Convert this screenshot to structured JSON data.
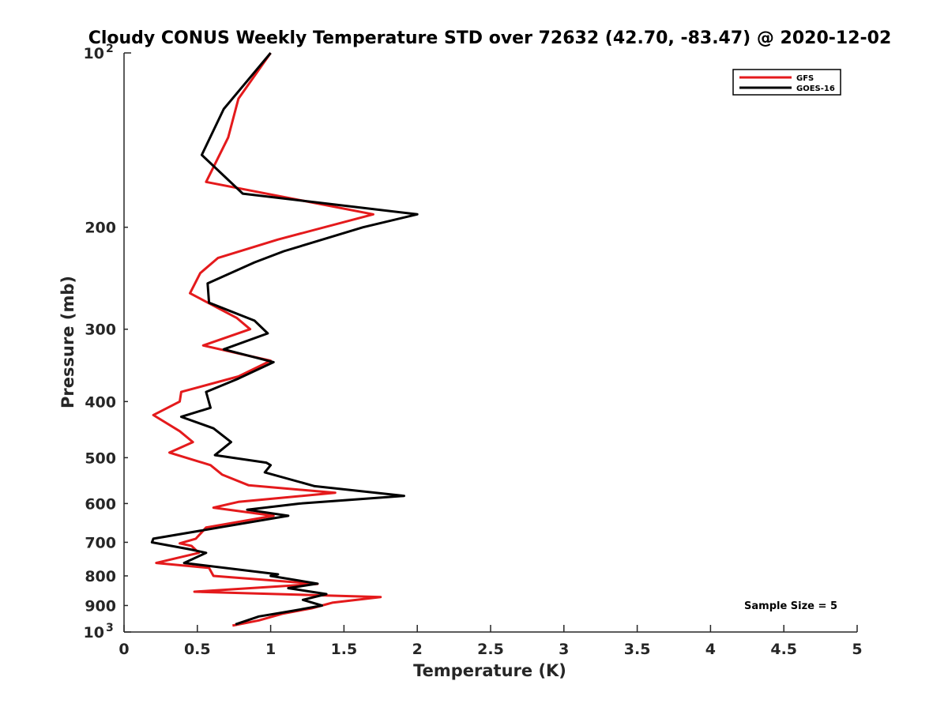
{
  "chart_data": {
    "type": "line",
    "title": "Cloudy CONUS Weekly Temperature STD over 72632 (42.70, -83.47) @ 2020-12-02",
    "xlabel": "Temperature (K)",
    "ylabel": "Pressure (mb)",
    "xlim": [
      0,
      5
    ],
    "ylim": [
      100,
      1000
    ],
    "y_scale": "log",
    "y_reversed": true,
    "x_ticks": [
      "0",
      "0.5",
      "1",
      "1.5",
      "2",
      "2.5",
      "3",
      "3.5",
      "4",
      "4.5",
      "5"
    ],
    "x_tick_values": [
      0,
      0.5,
      1,
      1.5,
      2,
      2.5,
      3,
      3.5,
      4,
      4.5,
      5
    ],
    "y_ticks": [
      {
        "value": 100,
        "base": "10",
        "exp": "2"
      },
      {
        "value": 200,
        "label": "200"
      },
      {
        "value": 300,
        "label": "300"
      },
      {
        "value": 400,
        "label": "400"
      },
      {
        "value": 500,
        "label": "500"
      },
      {
        "value": 600,
        "label": "600"
      },
      {
        "value": 700,
        "label": "700"
      },
      {
        "value": 800,
        "label": "800"
      },
      {
        "value": 900,
        "label": "900"
      },
      {
        "value": 1000,
        "base": "10",
        "exp": "3"
      }
    ],
    "grid": false,
    "legend_position": "top-right",
    "annotation": "Sample Size = 5",
    "series": [
      {
        "name": "GFS",
        "color": "#e41a1c",
        "points": [
          [
            1.0,
            100
          ],
          [
            0.78,
            120
          ],
          [
            0.71,
            140
          ],
          [
            0.56,
            167
          ],
          [
            1.7,
            190
          ],
          [
            1.05,
            210
          ],
          [
            0.64,
            226
          ],
          [
            0.52,
            240
          ],
          [
            0.45,
            260
          ],
          [
            0.77,
            287
          ],
          [
            0.86,
            300
          ],
          [
            0.54,
            320
          ],
          [
            1.0,
            340
          ],
          [
            0.78,
            362
          ],
          [
            0.39,
            385
          ],
          [
            0.38,
            400
          ],
          [
            0.2,
            422
          ],
          [
            0.38,
            450
          ],
          [
            0.47,
            470
          ],
          [
            0.31,
            490
          ],
          [
            0.59,
            515
          ],
          [
            0.67,
            535
          ],
          [
            0.85,
            558
          ],
          [
            1.44,
            575
          ],
          [
            0.78,
            596
          ],
          [
            0.61,
            610
          ],
          [
            1.02,
            630
          ],
          [
            0.56,
            660
          ],
          [
            0.49,
            690
          ],
          [
            0.38,
            703
          ],
          [
            0.46,
            710
          ],
          [
            0.51,
            730
          ],
          [
            0.22,
            760
          ],
          [
            0.58,
            775
          ],
          [
            0.61,
            800
          ],
          [
            1.32,
            826
          ],
          [
            0.48,
            852
          ],
          [
            1.75,
            870
          ],
          [
            1.42,
            890
          ],
          [
            1.28,
            910
          ],
          [
            1.08,
            930
          ],
          [
            0.92,
            955
          ],
          [
            0.74,
            975
          ]
        ]
      },
      {
        "name": "GOES-16",
        "color": "#000000",
        "points": [
          [
            1.0,
            100
          ],
          [
            0.68,
            125
          ],
          [
            0.53,
            150
          ],
          [
            0.81,
            175
          ],
          [
            2.0,
            190
          ],
          [
            1.63,
            200
          ],
          [
            1.09,
            220
          ],
          [
            0.89,
            230
          ],
          [
            0.57,
            250
          ],
          [
            0.58,
            270
          ],
          [
            0.89,
            290
          ],
          [
            0.98,
            305
          ],
          [
            0.68,
            325
          ],
          [
            1.02,
            342
          ],
          [
            0.78,
            365
          ],
          [
            0.56,
            385
          ],
          [
            0.59,
            410
          ],
          [
            0.39,
            425
          ],
          [
            0.61,
            445
          ],
          [
            0.73,
            470
          ],
          [
            0.62,
            495
          ],
          [
            0.97,
            510
          ],
          [
            1.0,
            515
          ],
          [
            0.96,
            530
          ],
          [
            1.3,
            560
          ],
          [
            1.91,
            582
          ],
          [
            1.2,
            600
          ],
          [
            0.84,
            615
          ],
          [
            1.12,
            630
          ],
          [
            0.65,
            660
          ],
          [
            0.2,
            690
          ],
          [
            0.19,
            700
          ],
          [
            0.45,
            720
          ],
          [
            0.56,
            730
          ],
          [
            0.41,
            760
          ],
          [
            1.05,
            795
          ],
          [
            1.0,
            800
          ],
          [
            1.32,
            825
          ],
          [
            1.12,
            840
          ],
          [
            1.38,
            860
          ],
          [
            1.22,
            880
          ],
          [
            1.35,
            900
          ],
          [
            1.14,
            920
          ],
          [
            0.92,
            940
          ],
          [
            0.76,
            970
          ]
        ]
      }
    ]
  }
}
